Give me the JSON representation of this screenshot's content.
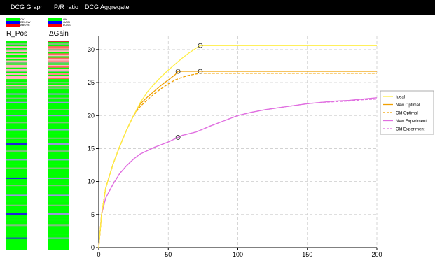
{
  "tabs": [
    "DCG Graph",
    "P/R ratio",
    "DCG Aggregate"
  ],
  "legend_left": {
    "items": [
      {
        "label": "OK",
        "color": "#00ff00"
      },
      {
        "label": "BELOW",
        "color": "#0000ff"
      },
      {
        "label": "ABOVE",
        "color": "#ff0000"
      }
    ]
  },
  "legend_right": {
    "items": [
      {
        "label": "OK",
        "color": "#00ff00"
      },
      {
        "label": "GAIN",
        "color": "#0000ff"
      },
      {
        "label": "LOSS",
        "color": "#ff0000"
      }
    ]
  },
  "columns": {
    "left_title": "R_Pos",
    "right_title": "ΔGain"
  },
  "chart_data": {
    "type": "line",
    "title": "",
    "xlabel": "",
    "ylabel": "",
    "xlim": [
      0,
      200
    ],
    "ylim": [
      0,
      32
    ],
    "xticks": [
      0,
      50,
      100,
      150,
      200
    ],
    "yticks": [
      0,
      5,
      10,
      15,
      20,
      25,
      30
    ],
    "grid": true,
    "legend_position": "right",
    "series": [
      {
        "name": "Ideal",
        "color": "#ffee44",
        "dash": false,
        "x": [
          0,
          2,
          5,
          10,
          15,
          20,
          25,
          30,
          35,
          40,
          45,
          50,
          55,
          60,
          65,
          70,
          73,
          200
        ],
        "y": [
          0,
          5,
          9,
          12.5,
          15.3,
          17.8,
          20,
          22,
          23.6,
          24.8,
          25.9,
          26.9,
          27.8,
          28.7,
          29.5,
          30.2,
          30.6,
          30.6
        ]
      },
      {
        "name": "New Optimal",
        "color": "#f0a000",
        "dash": false,
        "x": [
          0,
          2,
          5,
          10,
          15,
          20,
          25,
          30,
          35,
          40,
          45,
          50,
          55,
          57,
          200
        ],
        "y": [
          0,
          5,
          9,
          12.5,
          15.3,
          17.8,
          20,
          21.8,
          22.8,
          23.7,
          24.6,
          25.4,
          26.2,
          26.7,
          26.7
        ]
      },
      {
        "name": "Old Optimal",
        "color": "#f0a000",
        "dash": true,
        "x": [
          0,
          2,
          5,
          10,
          15,
          20,
          25,
          30,
          35,
          40,
          45,
          50,
          55,
          60,
          65,
          70,
          73,
          200
        ],
        "y": [
          0,
          5,
          9,
          12.5,
          15.3,
          17.8,
          20,
          21.4,
          22.4,
          23.3,
          24.1,
          24.8,
          25.4,
          25.8,
          26.1,
          26.3,
          26.4,
          26.4
        ]
      },
      {
        "name": "New Experiment",
        "color": "#e06ee0",
        "dash": false,
        "x": [
          0,
          2,
          5,
          10,
          15,
          20,
          25,
          30,
          40,
          50,
          57,
          60,
          70,
          80,
          90,
          100,
          110,
          120,
          130,
          140,
          150,
          160,
          170,
          180,
          190,
          200
        ],
        "y": [
          0,
          5,
          7.5,
          9.5,
          11.2,
          12.4,
          13.4,
          14.2,
          15.2,
          16,
          16.7,
          17,
          17.5,
          18.4,
          19.2,
          20,
          20.5,
          20.9,
          21.2,
          21.5,
          21.8,
          22,
          22.2,
          22.3,
          22.5,
          22.7
        ]
      },
      {
        "name": "Old Experiment",
        "color": "#e06ee0",
        "dash": true,
        "x": [
          0,
          2,
          5,
          10,
          15,
          20,
          25,
          30,
          40,
          50,
          57,
          60,
          70,
          80,
          90,
          100,
          110,
          120,
          130,
          140,
          150,
          160,
          170,
          180,
          190,
          200
        ],
        "y": [
          0,
          5,
          7.5,
          9.5,
          11.2,
          12.4,
          13.4,
          14.2,
          15.2,
          16,
          16.7,
          17,
          17.5,
          18.4,
          19.2,
          20,
          20.5,
          20.9,
          21.2,
          21.5,
          21.8,
          22,
          22.1,
          22.2,
          22.4,
          22.5
        ]
      }
    ],
    "markers": [
      {
        "x": 73,
        "y": 30.6
      },
      {
        "x": 57,
        "y": 26.7
      },
      {
        "x": 73,
        "y": 26.7
      },
      {
        "x": 57,
        "y": 16.7
      }
    ]
  },
  "strips": {
    "left": [
      "#00ff00",
      "#00ff00",
      "#7fbf7f",
      "#00ff00",
      "#ffb6c1",
      "#00ff00",
      "#7fbf7f",
      "#ffb6c1",
      "#00ff00",
      "#ffb6c1",
      "#00ff00",
      "#00ff00",
      "#ffb6c1",
      "#00ff00",
      "#ffb6c1",
      "#7fbf7f",
      "#00ff00",
      "#ffb6c1",
      "#ffb6c1",
      "#00ff00",
      "#ffb6c1",
      "#7fbf7f",
      "#00ff00",
      "#ffb6c1",
      "#00ff00",
      "#ffb6c1",
      "#ffb6c1",
      "#00ff00",
      "#00ff00",
      "#7fbf7f",
      "#00ff00",
      "#ffb6c1",
      "#00ff00",
      "#7fbf7f",
      "#00ff00",
      "#00ff00",
      "#00ff00",
      "#9999dd",
      "#00ff00",
      "#00ff00",
      "#7fbf7f",
      "#00ff00",
      "#00ff00",
      "#9999dd",
      "#00ff00",
      "#00ff00",
      "#00ff00",
      "#00ff00",
      "#7fbf7f",
      "#00ff00",
      "#00ff00",
      "#00ff00",
      "#9999dd",
      "#00ff00",
      "#00ff00",
      "#00ff00",
      "#00ff00",
      "#7fbf7f",
      "#00ff00",
      "#00ff00",
      "#00ff00",
      "#00ff00",
      "#9999dd",
      "#00ff00",
      "#00ff00",
      "#00ff00",
      "#00ff00",
      "#00ff00",
      "#7fbf7f",
      "#00ff00",
      "#00ff00",
      "#00ff00",
      "#2222dd",
      "#00ff00",
      "#00ff00",
      "#00ff00",
      "#00ff00",
      "#7fbf7f",
      "#00ff00",
      "#00ff00",
      "#00ff00",
      "#00ff00",
      "#00ff00",
      "#9999dd",
      "#00ff00",
      "#00ff00",
      "#00ff00",
      "#00ff00",
      "#00ff00",
      "#7fbf7f",
      "#00ff00",
      "#00ff00",
      "#00ff00",
      "#00ff00",
      "#00ff00",
      "#00ff00",
      "#2222dd",
      "#00ff00",
      "#00ff00",
      "#00ff00",
      "#00ff00",
      "#7fbf7f",
      "#00ff00",
      "#00ff00",
      "#00ff00",
      "#00ff00",
      "#00ff00",
      "#00ff00",
      "#9999dd",
      "#00ff00",
      "#00ff00",
      "#00ff00",
      "#00ff00",
      "#00ff00",
      "#00ff00",
      "#7fbf7f",
      "#00ff00",
      "#00ff00",
      "#00ff00",
      "#00ff00",
      "#00ff00",
      "#2222dd",
      "#00ff00",
      "#00ff00",
      "#00ff00",
      "#00ff00",
      "#00ff00",
      "#00ff00",
      "#00ff00",
      "#7fbf7f",
      "#00ff00",
      "#00ff00",
      "#00ff00",
      "#00ff00",
      "#00ff00",
      "#00ff00",
      "#00ff00",
      "#00ff00",
      "#2222dd",
      "#00ff00",
      "#00ff00",
      "#00ff00",
      "#00ff00",
      "#00ff00",
      "#00ff00",
      "#00ff00",
      "#00ff00"
    ],
    "right": [
      "#cc3333",
      "#00ff00",
      "#7fbf7f",
      "#00ff00",
      "#ff6666",
      "#ff8c8c",
      "#7fbf7f",
      "#ffb6c1",
      "#00ff00",
      "#ff6666",
      "#ffb6c1",
      "#00ff00",
      "#ff6666",
      "#ffb6c1",
      "#ff8c8c",
      "#7fbf7f",
      "#00ff00",
      "#ffb6c1",
      "#ff6666",
      "#00ff00",
      "#ffb6c1",
      "#7fbf7f",
      "#00ff00",
      "#ff8c8c",
      "#00ff00",
      "#ffb6c1",
      "#ff6666",
      "#00ff00",
      "#00ff00",
      "#7fbf7f",
      "#00ff00",
      "#ffb6c1",
      "#00ff00",
      "#7fbf7f",
      "#00ff00",
      "#00ff00",
      "#00ff00",
      "#9999dd",
      "#00ff00",
      "#00ff00",
      "#7fbf7f",
      "#00ff00",
      "#00ff00",
      "#9999dd",
      "#00ff00",
      "#00ff00",
      "#00ff00",
      "#00ff00",
      "#7fbf7f",
      "#00ff00",
      "#00ff00",
      "#00ff00",
      "#9999dd",
      "#00ff00",
      "#00ff00",
      "#00ff00",
      "#00ff00",
      "#7fbf7f",
      "#00ff00",
      "#00ff00",
      "#00ff00",
      "#00ff00",
      "#9999dd",
      "#00ff00",
      "#00ff00",
      "#00ff00",
      "#00ff00",
      "#00ff00",
      "#7fbf7f",
      "#00ff00",
      "#00ff00",
      "#00ff00",
      "#9999dd",
      "#00ff00",
      "#00ff00",
      "#00ff00",
      "#00ff00",
      "#7fbf7f",
      "#00ff00",
      "#00ff00",
      "#00ff00",
      "#00ff00",
      "#00ff00",
      "#9999dd",
      "#00ff00",
      "#00ff00",
      "#00ff00",
      "#00ff00",
      "#00ff00",
      "#7fbf7f",
      "#00ff00",
      "#00ff00",
      "#00ff00",
      "#00ff00",
      "#00ff00",
      "#00ff00",
      "#9999dd",
      "#00ff00",
      "#00ff00",
      "#00ff00",
      "#00ff00",
      "#7fbf7f",
      "#00ff00",
      "#00ff00",
      "#00ff00",
      "#00ff00",
      "#00ff00",
      "#00ff00",
      "#9999dd",
      "#00ff00",
      "#00ff00",
      "#00ff00",
      "#00ff00",
      "#00ff00",
      "#00ff00",
      "#7fbf7f",
      "#00ff00",
      "#00ff00",
      "#00ff00",
      "#00ff00",
      "#00ff00",
      "#9999dd",
      "#00ff00",
      "#00ff00",
      "#00ff00",
      "#00ff00",
      "#00ff00",
      "#00ff00",
      "#00ff00",
      "#7fbf7f",
      "#00ff00",
      "#00ff00",
      "#00ff00",
      "#00ff00",
      "#00ff00",
      "#00ff00",
      "#00ff00",
      "#00ff00",
      "#9999dd",
      "#00ff00",
      "#00ff00",
      "#00ff00",
      "#00ff00",
      "#00ff00",
      "#00ff00",
      "#00ff00",
      "#00ff00"
    ]
  }
}
